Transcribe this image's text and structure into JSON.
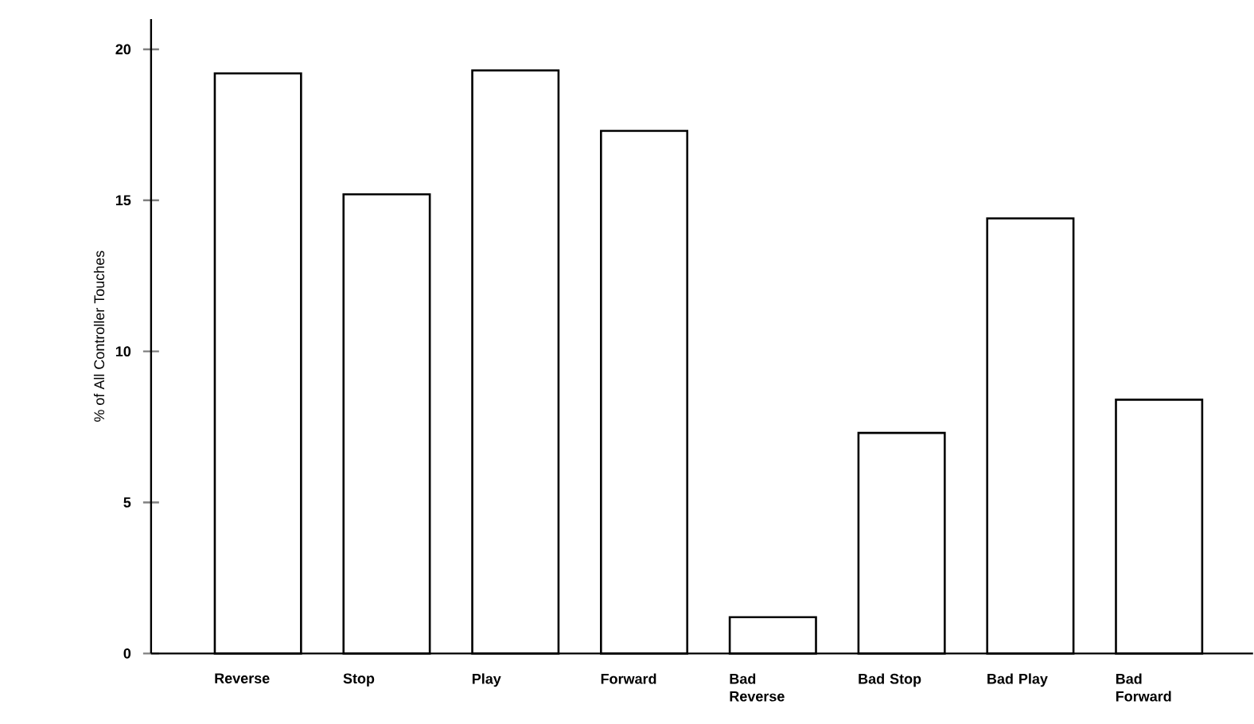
{
  "chart_data": {
    "type": "bar",
    "ylabel": "% of All Controller Touches",
    "categories": [
      "Reverse",
      "Stop",
      "Play",
      "Forward",
      "Bad Reverse",
      "Bad Stop",
      "Bad Play",
      "Bad Forward"
    ],
    "values": [
      19.2,
      15.2,
      19.3,
      17.3,
      1.2,
      7.3,
      14.4,
      8.4
    ],
    "color": "#000000",
    "ylim": [
      0,
      21
    ],
    "yticks": [
      0,
      5,
      10,
      15,
      20
    ],
    "grid": false
  }
}
